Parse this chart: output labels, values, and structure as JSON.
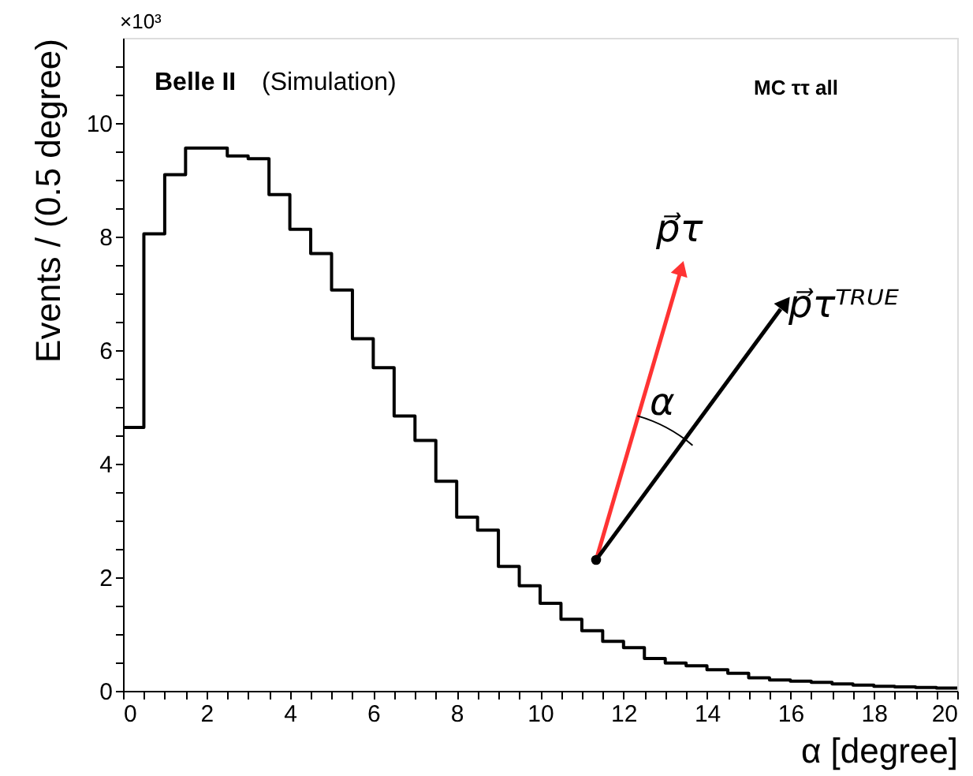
{
  "chart_data": {
    "type": "histogram",
    "xlabel": "α  [degree]",
    "ylabel": "Events / (0.5 degree)",
    "bins": [
      0,
      0.5,
      1,
      1.5,
      2,
      2.5,
      3,
      3.5,
      4,
      4.5,
      5,
      5.5,
      6,
      6.5,
      7,
      7.5,
      8,
      8.5,
      9,
      9.5,
      10,
      10.5,
      11,
      11.5,
      12,
      12.5,
      13,
      13.5,
      14,
      14.5,
      15,
      15.5,
      16,
      16.5,
      17,
      17.5,
      18,
      18.5,
      19,
      19.5,
      20
    ],
    "values": [
      4.64,
      8.05,
      9.09,
      9.56,
      9.56,
      9.42,
      9.37,
      8.74,
      8.13,
      7.7,
      7.06,
      6.2,
      5.69,
      4.84,
      4.41,
      3.69,
      3.06,
      2.83,
      2.19,
      1.85,
      1.54,
      1.26,
      1.06,
      0.87,
      0.76,
      0.57,
      0.49,
      0.44,
      0.37,
      0.31,
      0.23,
      0.19,
      0.17,
      0.15,
      0.12,
      0.1,
      0.08,
      0.07,
      0.06,
      0.05
    ],
    "color": "#000000",
    "xlim": [
      0,
      20
    ],
    "ylim": [
      0,
      11.5
    ],
    "xticks": [
      0,
      {
        "value": 0.5,
        "label": null
      },
      {
        "value": 1,
        "label": null
      },
      {
        "value": 1.5,
        "label": null
      },
      2,
      {
        "value": 2.5,
        "label": null
      },
      {
        "value": 3,
        "label": null
      },
      {
        "value": 3.5,
        "label": null
      },
      4,
      {
        "value": 4.5,
        "label": null
      },
      {
        "value": 5,
        "label": null
      },
      {
        "value": 5.5,
        "label": null
      },
      6,
      {
        "value": 6.5,
        "label": null
      },
      {
        "value": 7,
        "label": null
      },
      {
        "value": 7.5,
        "label": null
      },
      8,
      {
        "value": 8.5,
        "label": null
      },
      {
        "value": 9,
        "label": null
      },
      {
        "value": 9.5,
        "label": null
      },
      10,
      {
        "value": 10.5,
        "label": null
      },
      {
        "value": 11,
        "label": null
      },
      {
        "value": 11.5,
        "label": null
      },
      12,
      {
        "value": 12.5,
        "label": null
      },
      {
        "value": 13,
        "label": null
      },
      {
        "value": 13.5,
        "label": null
      },
      14,
      {
        "value": 14.5,
        "label": null
      },
      {
        "value": 15,
        "label": null
      },
      {
        "value": 15.5,
        "label": null
      },
      16,
      {
        "value": 16.5,
        "label": null
      },
      {
        "value": 17,
        "label": null
      },
      {
        "value": 17.5,
        "label": null
      },
      18,
      {
        "value": 18.5,
        "label": null
      },
      {
        "value": 19,
        "label": null
      },
      {
        "value": 19.5,
        "label": null
      },
      20
    ],
    "yticks": [
      0,
      {
        "value": 0.5,
        "label": null
      },
      {
        "value": 1,
        "label": null
      },
      {
        "value": 1.5,
        "label": null
      },
      2,
      {
        "value": 2.5,
        "label": null
      },
      {
        "value": 3,
        "label": null
      },
      {
        "value": 3.5,
        "label": null
      },
      4,
      {
        "value": 4.5,
        "label": null
      },
      {
        "value": 5,
        "label": null
      },
      {
        "value": 5.5,
        "label": null
      },
      6,
      {
        "value": 6.5,
        "label": null
      },
      {
        "value": 7,
        "label": null
      },
      {
        "value": 7.5,
        "label": null
      },
      8,
      {
        "value": 8.5,
        "label": null
      },
      {
        "value": 9,
        "label": null
      },
      {
        "value": 9.5,
        "label": null
      },
      10,
      {
        "value": 10.5,
        "label": null
      },
      {
        "value": 11,
        "label": null
      }
    ],
    "annotations": [
      "×10³",
      "Belle II (Simulation)",
      "MC ττ all",
      "p⃗τ",
      "p⃗τᵀᴿᵁᴱ",
      "α"
    ]
  }
}
